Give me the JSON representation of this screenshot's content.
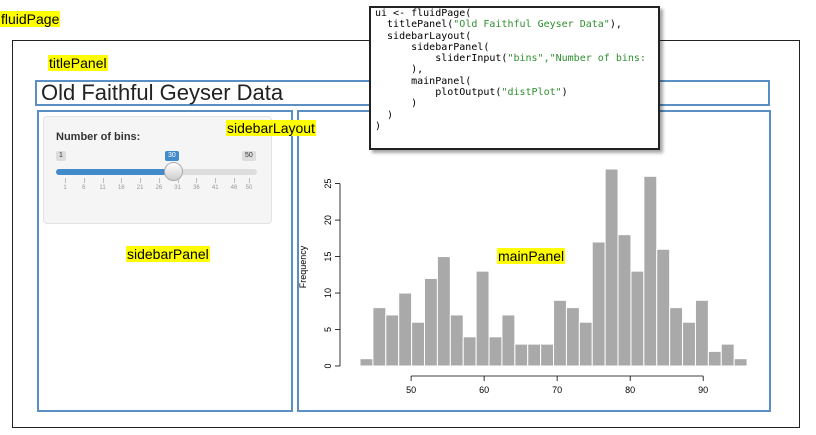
{
  "labels": {
    "fluidPage": "fluidPage",
    "titlePanel": "titlePanel",
    "sidebarLayout": "sidebarLayout",
    "sidebarPanel": "sidebarPanel",
    "mainPanel": "mainPanel"
  },
  "app": {
    "title": "Old Faithful Geyser Data"
  },
  "slider": {
    "label": "Number of bins:",
    "min": 1,
    "max": 50,
    "value": 30,
    "min_text": "1",
    "max_text": "50",
    "value_text": "30",
    "ticks": [
      "1",
      "6",
      "11",
      "16",
      "21",
      "26",
      "31",
      "36",
      "41",
      "46",
      "50"
    ]
  },
  "code": {
    "lines": [
      [
        "ui <- fluidPage(",
        ""
      ],
      [
        "  titlePanel(",
        "\"Old Faithful Geyser Data\"",
        "),"
      ],
      [
        "  sidebarLayout(",
        ""
      ],
      [
        "      sidebarPanel(",
        ""
      ],
      [
        "          sliderInput(",
        "\"bins\",\"Number of bins:",
        ""
      ],
      [
        "      ),",
        ""
      ],
      [
        "      mainPanel(",
        ""
      ],
      [
        "          plotOutput(",
        "\"distPlot\"",
        ")"
      ],
      [
        "      )",
        ""
      ],
      [
        "  )",
        ""
      ],
      [
        ")",
        ""
      ]
    ]
  },
  "chart_data": {
    "type": "bar",
    "title": "",
    "xlabel": "",
    "ylabel": "Frequency",
    "bar_color": "#a9a9a9",
    "x_start": 43,
    "bin_width": 1.767,
    "values": [
      1,
      8,
      7,
      10,
      6,
      12,
      15,
      7,
      4,
      13,
      4,
      7,
      3,
      3,
      3,
      9,
      8,
      6,
      17,
      27,
      18,
      13,
      26,
      16,
      8,
      6,
      9,
      2,
      3,
      1
    ],
    "xticks": [
      50,
      60,
      70,
      80,
      90
    ],
    "yticks": [
      0,
      5,
      10,
      15,
      20,
      25
    ],
    "xlim": [
      43,
      96
    ],
    "ylim": [
      0,
      27
    ]
  }
}
